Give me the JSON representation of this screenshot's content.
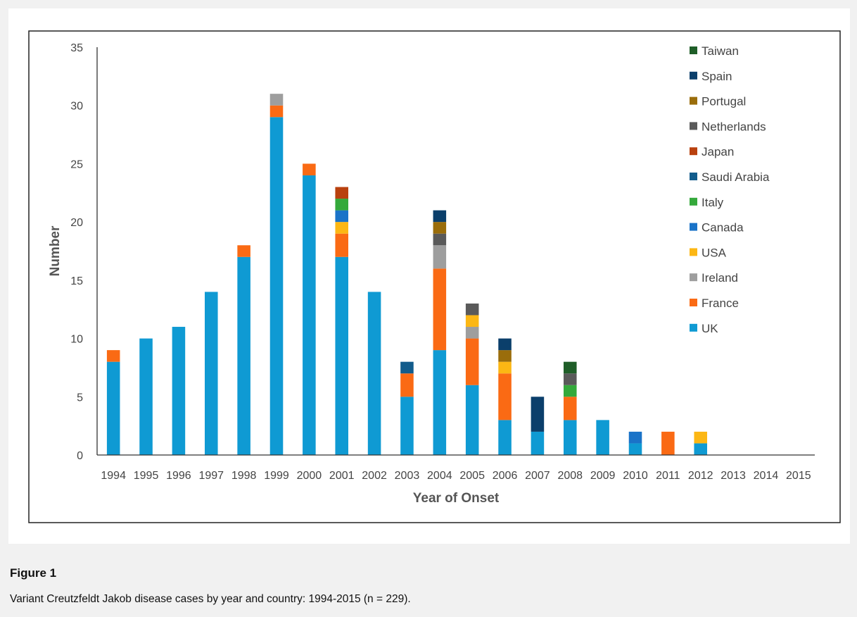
{
  "figure": {
    "label": "Figure 1",
    "caption": "Variant Creutzfeldt Jakob disease cases by year and country: 1994-2015 (n = 229)."
  },
  "chart_data": {
    "type": "bar",
    "stacked": true,
    "xlabel": "Year of Onset",
    "ylabel": "Number",
    "ylim": [
      0,
      35
    ],
    "yticks": [
      0,
      5,
      10,
      15,
      20,
      25,
      30,
      35
    ],
    "grid": false,
    "legend_position": "top-right",
    "categories": [
      "1994",
      "1995",
      "1996",
      "1997",
      "1998",
      "1999",
      "2000",
      "2001",
      "2002",
      "2003",
      "2004",
      "2005",
      "2006",
      "2007",
      "2008",
      "2009",
      "2010",
      "2011",
      "2012",
      "2013",
      "2014",
      "2015"
    ],
    "series": [
      {
        "name": "UK",
        "color": "#0f9ad3",
        "values": [
          8,
          10,
          11,
          14,
          17,
          29,
          24,
          17,
          14,
          5,
          9,
          6,
          3,
          2,
          3,
          3,
          1,
          0,
          1,
          0,
          0,
          0
        ]
      },
      {
        "name": "France",
        "color": "#fa6a14",
        "values": [
          1,
          0,
          0,
          0,
          1,
          1,
          1,
          2,
          0,
          2,
          7,
          4,
          4,
          0,
          2,
          0,
          0,
          2,
          0,
          0,
          0,
          0
        ]
      },
      {
        "name": "Ireland",
        "color": "#9e9e9e",
        "values": [
          0,
          0,
          0,
          0,
          0,
          1,
          0,
          0,
          0,
          0,
          2,
          1,
          0,
          0,
          0,
          0,
          0,
          0,
          0,
          0,
          0,
          0
        ]
      },
      {
        "name": "USA",
        "color": "#fcb714",
        "values": [
          0,
          0,
          0,
          0,
          0,
          0,
          0,
          1,
          0,
          0,
          0,
          1,
          1,
          0,
          0,
          0,
          0,
          0,
          1,
          0,
          0,
          0
        ]
      },
      {
        "name": "Canada",
        "color": "#1a73c8",
        "values": [
          0,
          0,
          0,
          0,
          0,
          0,
          0,
          1,
          0,
          0,
          0,
          0,
          0,
          0,
          0,
          0,
          1,
          0,
          0,
          0,
          0,
          0
        ]
      },
      {
        "name": "Italy",
        "color": "#34a93b",
        "values": [
          0,
          0,
          0,
          0,
          0,
          0,
          0,
          1,
          0,
          0,
          0,
          0,
          0,
          0,
          1,
          0,
          0,
          0,
          0,
          0,
          0,
          0
        ]
      },
      {
        "name": "Saudi Arabia",
        "color": "#125c8c",
        "values": [
          0,
          0,
          0,
          0,
          0,
          0,
          0,
          0,
          0,
          1,
          0,
          0,
          0,
          0,
          0,
          0,
          0,
          0,
          0,
          0,
          0,
          0
        ]
      },
      {
        "name": "Japan",
        "color": "#b9410e",
        "values": [
          0,
          0,
          0,
          0,
          0,
          0,
          0,
          1,
          0,
          0,
          0,
          0,
          0,
          0,
          0,
          0,
          0,
          0,
          0,
          0,
          0,
          0
        ]
      },
      {
        "name": "Netherlands",
        "color": "#5a5a5a",
        "values": [
          0,
          0,
          0,
          0,
          0,
          0,
          0,
          0,
          0,
          0,
          1,
          1,
          0,
          0,
          1,
          0,
          0,
          0,
          0,
          0,
          0,
          0
        ]
      },
      {
        "name": "Portugal",
        "color": "#9a6d0b",
        "values": [
          0,
          0,
          0,
          0,
          0,
          0,
          0,
          0,
          0,
          0,
          1,
          0,
          1,
          0,
          0,
          0,
          0,
          0,
          0,
          0,
          0,
          0
        ]
      },
      {
        "name": "Spain",
        "color": "#0b3f6b",
        "values": [
          0,
          0,
          0,
          0,
          0,
          0,
          0,
          0,
          0,
          0,
          1,
          0,
          1,
          3,
          0,
          0,
          0,
          0,
          0,
          0,
          0,
          0
        ]
      },
      {
        "name": "Taiwan",
        "color": "#1f5e28",
        "values": [
          0,
          0,
          0,
          0,
          0,
          0,
          0,
          0,
          0,
          0,
          0,
          0,
          0,
          0,
          1,
          0,
          0,
          0,
          0,
          0,
          0,
          0
        ]
      }
    ]
  }
}
